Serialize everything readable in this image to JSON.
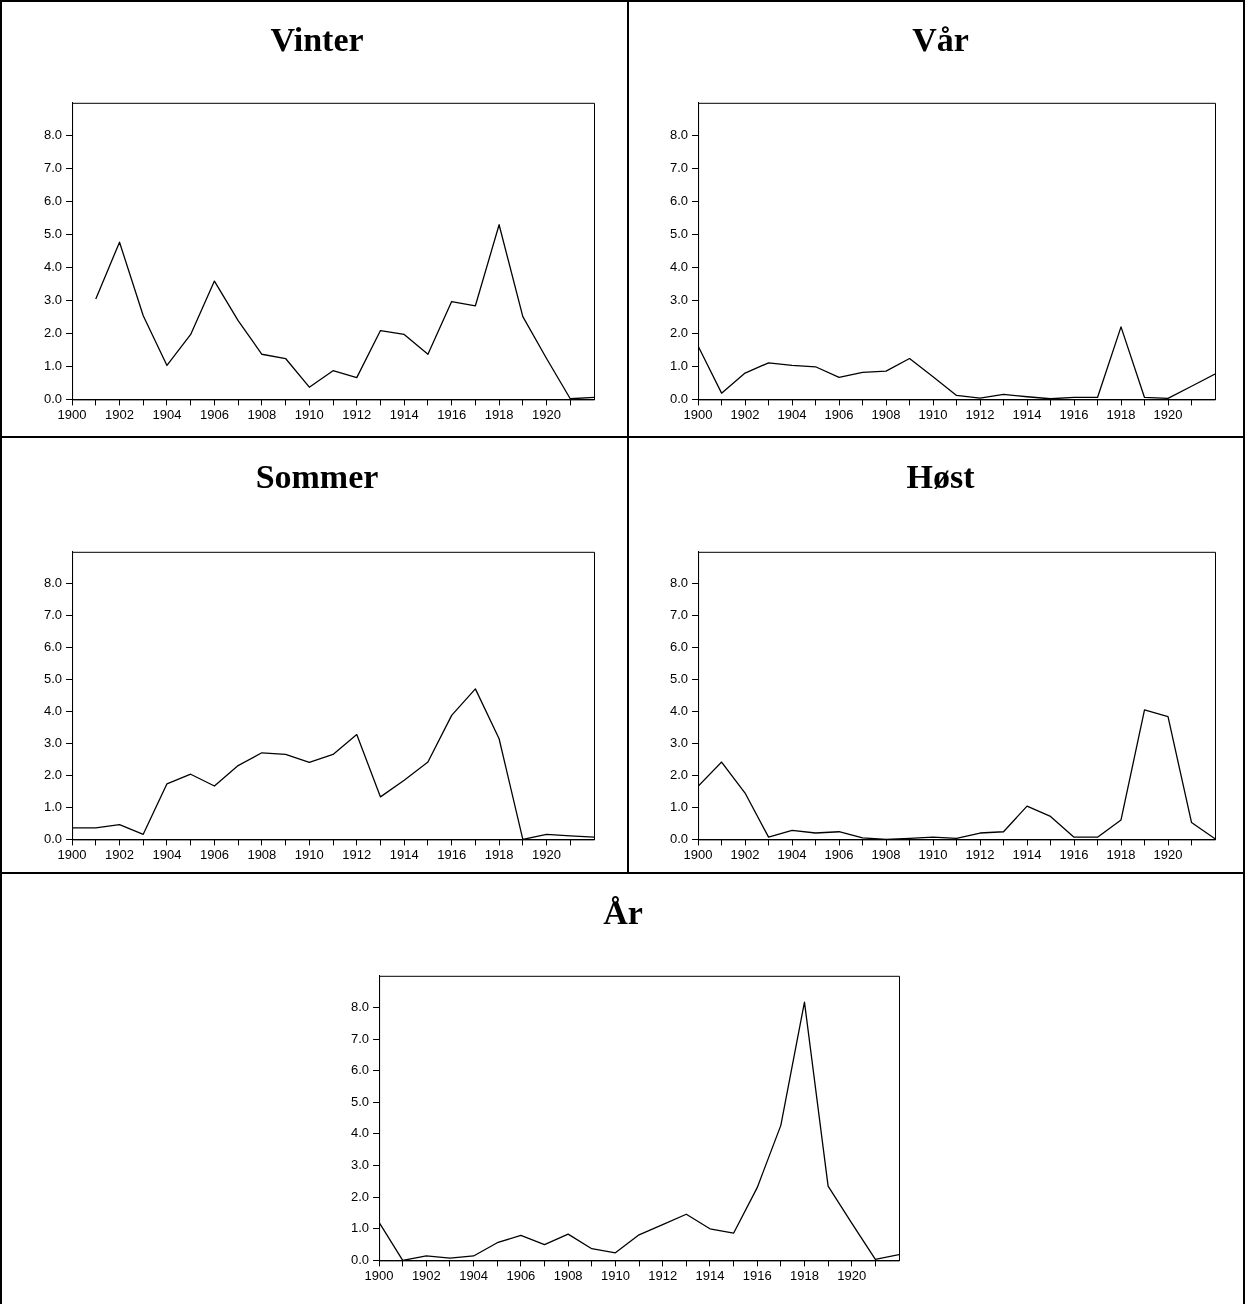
{
  "chart_data": [
    {
      "type": "line",
      "title": "Vinter",
      "series": [
        {
          "color": "#000000",
          "x": [
            1901,
            1902,
            1903,
            1904,
            1905,
            1906,
            1907,
            1908,
            1909,
            1910,
            1911,
            1912,
            1913,
            1914,
            1915,
            1916,
            1917,
            1918,
            1919,
            1920,
            1921,
            1922
          ],
          "values": [
            3.05,
            4.77,
            2.54,
            1.03,
            1.97,
            3.59,
            2.39,
            1.37,
            1.24,
            0.37,
            0.87,
            0.66,
            2.09,
            1.97,
            1.37,
            2.97,
            2.84,
            5.3,
            2.51,
            1.24,
            0.02,
            0.06
          ]
        }
      ],
      "xlim": [
        1900,
        1922
      ],
      "ylim": [
        0,
        9
      ],
      "xticks": [
        1900,
        {
          "value": 1901,
          "label": null
        },
        1902,
        {
          "value": 1903,
          "label": null
        },
        1904,
        {
          "value": 1905,
          "label": null
        },
        1906,
        {
          "value": 1907,
          "label": null
        },
        1908,
        {
          "value": 1909,
          "label": null
        },
        1910,
        {
          "value": 1911,
          "label": null
        },
        1912,
        {
          "value": 1913,
          "label": null
        },
        1914,
        {
          "value": 1915,
          "label": null
        },
        1916,
        {
          "value": 1917,
          "label": null
        },
        1918,
        {
          "value": 1919,
          "label": null
        },
        1920,
        {
          "value": 1921,
          "label": null
        }
      ],
      "yticks": [
        {
          "value": 0,
          "label": "0.0"
        },
        {
          "value": 1,
          "label": "1.0"
        },
        {
          "value": 2,
          "label": "2.0"
        },
        {
          "value": 3,
          "label": "3.0"
        },
        {
          "value": 4,
          "label": "4.0"
        },
        {
          "value": 5,
          "label": "5.0"
        },
        {
          "value": 6,
          "label": "6.0"
        },
        {
          "value": 7,
          "label": "7.0"
        },
        {
          "value": 8,
          "label": "8.0"
        }
      ],
      "grid": false,
      "legend": false
    },
    {
      "type": "line",
      "title": "Vår",
      "x": [
        1900,
        1901,
        1902,
        1903,
        1904,
        1905,
        1906,
        1907,
        1908,
        1909,
        1910,
        1911,
        1912,
        1913,
        1914,
        1915,
        1916,
        1917,
        1918,
        1919,
        1920,
        1921,
        1922
      ],
      "series": [
        {
          "color": "#000000",
          "values": [
            1.62,
            0.19,
            0.8,
            1.11,
            1.03,
            0.99,
            0.67,
            0.82,
            0.86,
            1.24,
            0.69,
            0.12,
            0.04,
            0.15,
            0.08,
            0.02,
            0.06,
            0.06,
            2.2,
            0.06,
            0.03,
            0.4,
            0.77
          ]
        }
      ],
      "xlim": [
        1900,
        1922
      ],
      "ylim": [
        0,
        9
      ],
      "xticks": [
        1900,
        {
          "value": 1901,
          "label": null
        },
        1902,
        {
          "value": 1903,
          "label": null
        },
        1904,
        {
          "value": 1905,
          "label": null
        },
        1906,
        {
          "value": 1907,
          "label": null
        },
        1908,
        {
          "value": 1909,
          "label": null
        },
        1910,
        {
          "value": 1911,
          "label": null
        },
        1912,
        {
          "value": 1913,
          "label": null
        },
        1914,
        {
          "value": 1915,
          "label": null
        },
        1916,
        {
          "value": 1917,
          "label": null
        },
        1918,
        {
          "value": 1919,
          "label": null
        },
        1920,
        {
          "value": 1921,
          "label": null
        }
      ],
      "yticks": [
        {
          "value": 0,
          "label": "0.0"
        },
        {
          "value": 1,
          "label": "1.0"
        },
        {
          "value": 2,
          "label": "2.0"
        },
        {
          "value": 3,
          "label": "3.0"
        },
        {
          "value": 4,
          "label": "4.0"
        },
        {
          "value": 5,
          "label": "5.0"
        },
        {
          "value": 6,
          "label": "6.0"
        },
        {
          "value": 7,
          "label": "7.0"
        },
        {
          "value": 8,
          "label": "8.0"
        }
      ],
      "grid": false,
      "legend": false
    },
    {
      "type": "line",
      "title": "Sommer",
      "x": [
        1900,
        1901,
        1902,
        1903,
        1904,
        1905,
        1906,
        1907,
        1908,
        1909,
        1910,
        1911,
        1912,
        1913,
        1914,
        1915,
        1916,
        1917,
        1918,
        1919,
        1920,
        1921,
        1922
      ],
      "series": [
        {
          "color": "#000000",
          "values": [
            0.36,
            0.36,
            0.46,
            0.16,
            1.74,
            2.04,
            1.67,
            2.31,
            2.71,
            2.66,
            2.41,
            2.66,
            3.28,
            1.33,
            1.85,
            2.42,
            3.88,
            4.71,
            3.15,
            0,
            0.16,
            0.11,
            0.07
          ]
        }
      ],
      "xlim": [
        1900,
        1922
      ],
      "ylim": [
        0,
        9
      ],
      "xticks": [
        1900,
        {
          "value": 1901,
          "label": null
        },
        1902,
        {
          "value": 1903,
          "label": null
        },
        1904,
        {
          "value": 1905,
          "label": null
        },
        1906,
        {
          "value": 1907,
          "label": null
        },
        1908,
        {
          "value": 1909,
          "label": null
        },
        1910,
        {
          "value": 1911,
          "label": null
        },
        1912,
        {
          "value": 1913,
          "label": null
        },
        1914,
        {
          "value": 1915,
          "label": null
        },
        1916,
        {
          "value": 1917,
          "label": null
        },
        1918,
        {
          "value": 1919,
          "label": null
        },
        1920,
        {
          "value": 1921,
          "label": null
        }
      ],
      "yticks": [
        {
          "value": 0,
          "label": "0.0"
        },
        {
          "value": 1,
          "label": "1.0"
        },
        {
          "value": 2,
          "label": "2.0"
        },
        {
          "value": 3,
          "label": "3.0"
        },
        {
          "value": 4,
          "label": "4.0"
        },
        {
          "value": 5,
          "label": "5.0"
        },
        {
          "value": 6,
          "label": "6.0"
        },
        {
          "value": 7,
          "label": "7.0"
        },
        {
          "value": 8,
          "label": "8.0"
        }
      ],
      "grid": false,
      "legend": false
    },
    {
      "type": "line",
      "title": "Høst",
      "x": [
        1900,
        1901,
        1902,
        1903,
        1904,
        1905,
        1906,
        1907,
        1908,
        1909,
        1910,
        1911,
        1912,
        1913,
        1914,
        1915,
        1916,
        1917,
        1918,
        1919,
        1920,
        1921,
        1922
      ],
      "series": [
        {
          "color": "#000000",
          "values": [
            1.66,
            2.42,
            1.45,
            0.07,
            0.28,
            0.2,
            0.24,
            0.05,
            0,
            0.03,
            0.07,
            0.03,
            0.2,
            0.24,
            1.04,
            0.72,
            0.07,
            0.07,
            0.61,
            4.05,
            3.84,
            0.53,
            0.02
          ]
        }
      ],
      "xlim": [
        1900,
        1922
      ],
      "ylim": [
        0,
        9
      ],
      "xticks": [
        1900,
        {
          "value": 1901,
          "label": null
        },
        1902,
        {
          "value": 1903,
          "label": null
        },
        1904,
        {
          "value": 1905,
          "label": null
        },
        1906,
        {
          "value": 1907,
          "label": null
        },
        1908,
        {
          "value": 1909,
          "label": null
        },
        1910,
        {
          "value": 1911,
          "label": null
        },
        1912,
        {
          "value": 1913,
          "label": null
        },
        1914,
        {
          "value": 1915,
          "label": null
        },
        1916,
        {
          "value": 1917,
          "label": null
        },
        1918,
        {
          "value": 1919,
          "label": null
        },
        1920,
        {
          "value": 1921,
          "label": null
        }
      ],
      "yticks": [
        {
          "value": 0,
          "label": "0.0"
        },
        {
          "value": 1,
          "label": "1.0"
        },
        {
          "value": 2,
          "label": "2.0"
        },
        {
          "value": 3,
          "label": "3.0"
        },
        {
          "value": 4,
          "label": "4.0"
        },
        {
          "value": 5,
          "label": "5.0"
        },
        {
          "value": 6,
          "label": "6.0"
        },
        {
          "value": 7,
          "label": "7.0"
        },
        {
          "value": 8,
          "label": "8.0"
        }
      ],
      "grid": false,
      "legend": false
    },
    {
      "type": "line",
      "title": "År",
      "x": [
        1900,
        1901,
        1902,
        1903,
        1904,
        1905,
        1906,
        1907,
        1908,
        1909,
        1910,
        1911,
        1912,
        1913,
        1914,
        1915,
        1916,
        1917,
        1918,
        1919,
        1920,
        1921,
        1922
      ],
      "series": [
        {
          "color": "#000000",
          "values": [
            1.2,
            0,
            0.14,
            0.07,
            0.14,
            0.56,
            0.79,
            0.5,
            0.83,
            0.37,
            0.24,
            0.81,
            1.13,
            1.46,
            1.0,
            0.86,
            2.3,
            4.27,
            8.17,
            2.35,
            1.18,
            0.03,
            0.18
          ]
        }
      ],
      "xlim": [
        1900,
        1922
      ],
      "ylim": [
        0,
        9
      ],
      "xticks": [
        1900,
        {
          "value": 1901,
          "label": null
        },
        1902,
        {
          "value": 1903,
          "label": null
        },
        1904,
        {
          "value": 1905,
          "label": null
        },
        1906,
        {
          "value": 1907,
          "label": null
        },
        1908,
        {
          "value": 1909,
          "label": null
        },
        1910,
        {
          "value": 1911,
          "label": null
        },
        1912,
        {
          "value": 1913,
          "label": null
        },
        1914,
        {
          "value": 1915,
          "label": null
        },
        1916,
        {
          "value": 1917,
          "label": null
        },
        1918,
        {
          "value": 1919,
          "label": null
        },
        1920,
        {
          "value": 1921,
          "label": null
        }
      ],
      "yticks": [
        {
          "value": 0,
          "label": "0.0"
        },
        {
          "value": 1,
          "label": "1.0"
        },
        {
          "value": 2,
          "label": "2.0"
        },
        {
          "value": 3,
          "label": "3.0"
        },
        {
          "value": 4,
          "label": "4.0"
        },
        {
          "value": 5,
          "label": "5.0"
        },
        {
          "value": 6,
          "label": "6.0"
        },
        {
          "value": 7,
          "label": "7.0"
        },
        {
          "value": 8,
          "label": "8.0"
        }
      ],
      "grid": false,
      "legend": false
    }
  ]
}
